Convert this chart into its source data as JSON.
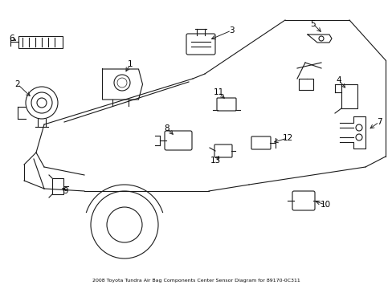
{
  "title": "2008 Toyota Tundra Air Bag Components Center Sensor Diagram for 89170-0C311",
  "background_color": "#ffffff",
  "line_color": "#1a1a1a",
  "label_color": "#000000",
  "fig_width": 4.89,
  "fig_height": 3.6,
  "dpi": 100
}
